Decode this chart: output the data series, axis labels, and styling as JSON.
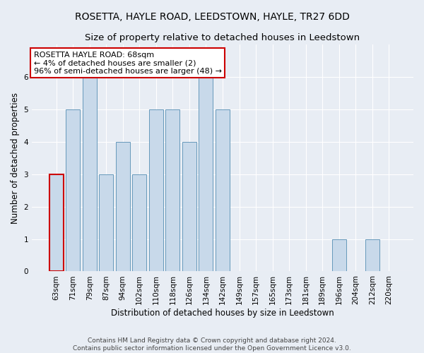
{
  "title": "ROSETTA, HAYLE ROAD, LEEDSTOWN, HAYLE, TR27 6DD",
  "subtitle": "Size of property relative to detached houses in Leedstown",
  "xlabel": "Distribution of detached houses by size in Leedstown",
  "ylabel": "Number of detached properties",
  "categories": [
    "63sqm",
    "71sqm",
    "79sqm",
    "87sqm",
    "94sqm",
    "102sqm",
    "110sqm",
    "118sqm",
    "126sqm",
    "134sqm",
    "142sqm",
    "149sqm",
    "157sqm",
    "165sqm",
    "173sqm",
    "181sqm",
    "189sqm",
    "196sqm",
    "204sqm",
    "212sqm",
    "220sqm"
  ],
  "values": [
    3,
    5,
    6,
    3,
    4,
    3,
    5,
    5,
    4,
    6,
    5,
    0,
    0,
    0,
    0,
    0,
    0,
    1,
    0,
    1,
    0
  ],
  "bar_color": "#c8d9ea",
  "bar_edge_color": "#6699bb",
  "highlight_index": 0,
  "highlight_edge_color": "#cc0000",
  "annotation_text": "ROSETTA HAYLE ROAD: 68sqm\n← 4% of detached houses are smaller (2)\n96% of semi-detached houses are larger (48) →",
  "annotation_box_color": "#ffffff",
  "annotation_box_edge_color": "#cc0000",
  "ylim": [
    0,
    7
  ],
  "yticks": [
    0,
    1,
    2,
    3,
    4,
    5,
    6
  ],
  "footer": "Contains HM Land Registry data © Crown copyright and database right 2024.\nContains public sector information licensed under the Open Government Licence v3.0.",
  "bg_color": "#e8edf4",
  "plot_bg_color": "#e8edf4",
  "grid_color": "#ffffff",
  "title_fontsize": 10,
  "subtitle_fontsize": 9.5,
  "label_fontsize": 8.5,
  "tick_fontsize": 7.5,
  "annotation_fontsize": 8,
  "footer_fontsize": 6.5
}
